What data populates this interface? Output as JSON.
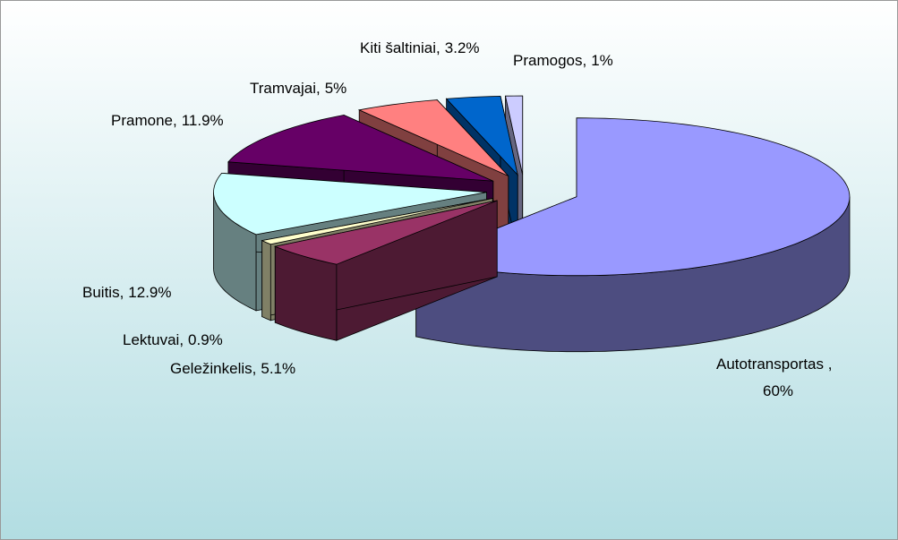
{
  "chart_data": {
    "type": "pie",
    "categories": [
      "Autotransportas ,",
      "Geležinkelis,",
      "Lektuvai,",
      "Buitis,",
      "Pramone,",
      "Tramvajai,",
      "Kiti šaltiniai,",
      "Pramogos,"
    ],
    "values": [
      60,
      5.1,
      0.9,
      12.9,
      11.9,
      5,
      3.2,
      1
    ],
    "value_labels": [
      "60%",
      "5.1%",
      "0.9%",
      "12.9%",
      "11.9%",
      "5%",
      "3.2%",
      "1%"
    ],
    "colors": [
      "#9999ff",
      "#993366",
      "#ffffcc",
      "#ccffff",
      "#660066",
      "#ff8080",
      "#0066cc",
      "#ccccff"
    ]
  }
}
